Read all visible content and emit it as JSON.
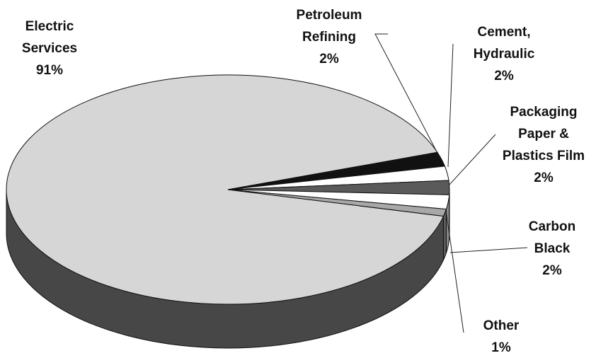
{
  "chart_data": {
    "type": "pie3d",
    "categories": [
      "Electric Services",
      "Petroleum Refining",
      "Cement, Hydraulic",
      "Packaging Paper & Plastics Film",
      "Carbon Black",
      "Other"
    ],
    "values": [
      91,
      2,
      2,
      2,
      2,
      1
    ],
    "value_labels": [
      "91%",
      "2%",
      "2%",
      "2%",
      "2%",
      "1%"
    ],
    "colors": [
      "#d6d6d6",
      "#111111",
      "#ffffff",
      "#5a5a5a",
      "#ffffff",
      "#a8a8a8"
    ]
  }
}
